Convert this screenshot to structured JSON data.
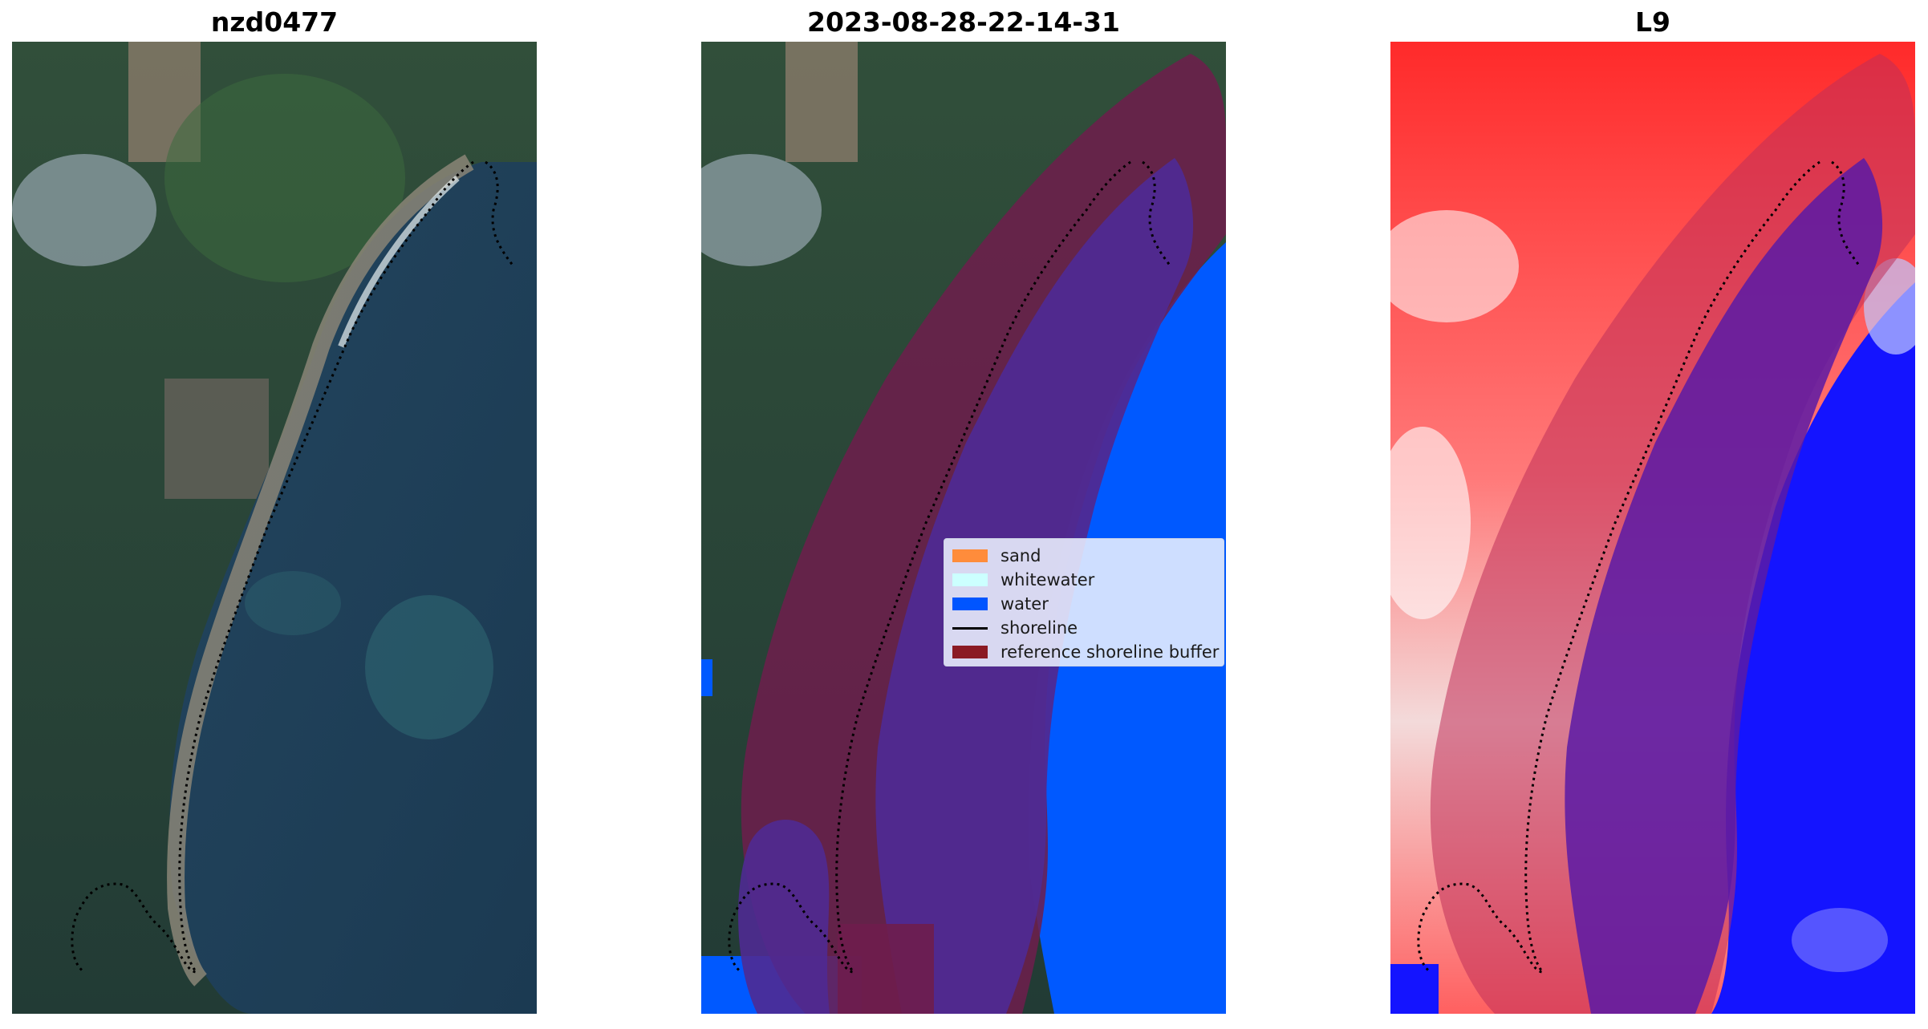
{
  "panels": [
    {
      "title": "nzd0477"
    },
    {
      "title": "2023-08-28-22-14-31"
    },
    {
      "title": "L9"
    }
  ],
  "legend": {
    "items": [
      {
        "label": "sand",
        "color": "#ff8c3b",
        "kind": "patch"
      },
      {
        "label": "whitewater",
        "color": "#ccffff",
        "kind": "patch"
      },
      {
        "label": "water",
        "color": "#0055ff",
        "kind": "patch"
      },
      {
        "label": "shoreline",
        "color": "#000000",
        "kind": "line"
      },
      {
        "label": "reference shoreline buffer",
        "color": "#8b1a24",
        "kind": "patch"
      }
    ]
  },
  "colors": {
    "land": "#2f4d34",
    "ocean": "#1f3f5c",
    "buffer": "#6e1d4c",
    "buffer_water": "#4f2a92",
    "water_class": "#0059ff",
    "index_land": "#ff2020",
    "index_water": "#1010ff"
  }
}
